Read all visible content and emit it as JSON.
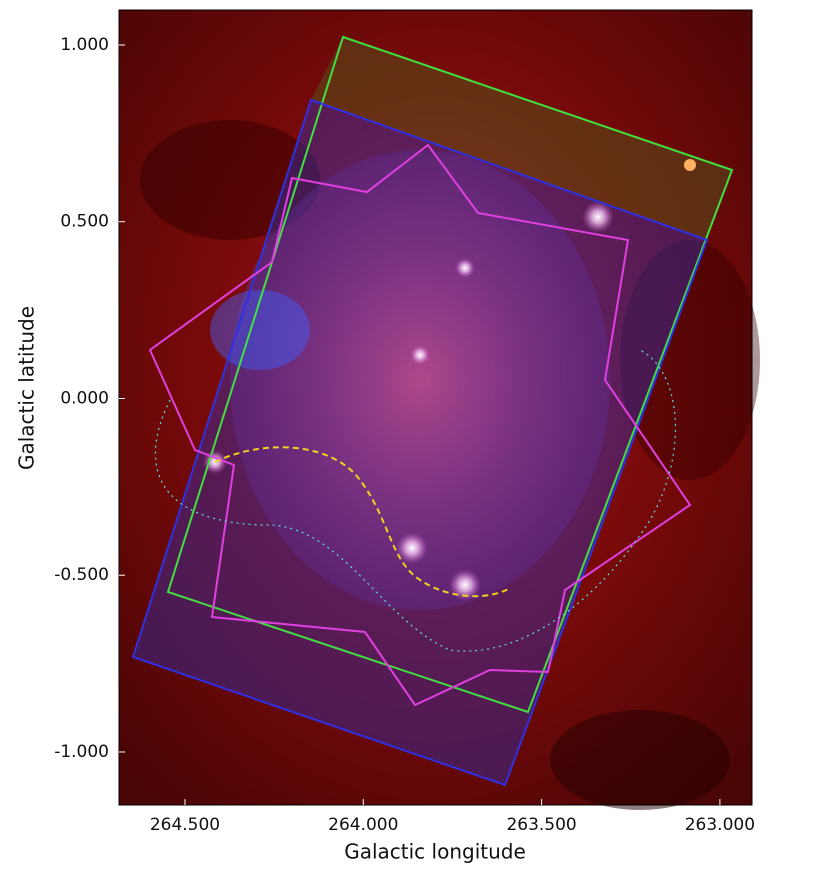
{
  "chart_data": {
    "type": "image",
    "xlabel": "Galactic longitude",
    "ylabel": "Galactic latitude",
    "xlim": [
      264.685,
      262.91
    ],
    "ylim": [
      -1.15,
      1.099
    ],
    "xticks": [
      {
        "value": 264.5,
        "label": "264.500"
      },
      {
        "value": 264.0,
        "label": "264.000"
      },
      {
        "value": 263.5,
        "label": "263.500"
      },
      {
        "value": 263.0,
        "label": "263.000"
      }
    ],
    "yticks": [
      {
        "value": 1,
        "label": "1.000"
      },
      {
        "value": 0.5,
        "label": "0.500"
      },
      {
        "value": 0,
        "label": "0.000"
      },
      {
        "value": -0.5,
        "label": "-0.500"
      },
      {
        "value": -1,
        "label": "-1.000"
      }
    ]
  }
}
